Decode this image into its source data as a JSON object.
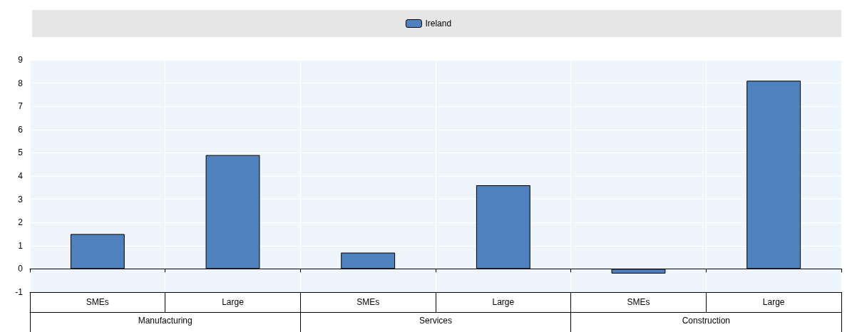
{
  "chart_data": {
    "type": "bar",
    "categories": [
      "SMEs",
      "Large",
      "SMEs",
      "Large",
      "SMEs",
      "Large"
    ],
    "annotations": [
      "Manufacturing",
      "Services",
      "Construction"
    ],
    "series": [
      {
        "name": "Ireland",
        "color": "#4e81bd",
        "values": [
          1.5,
          4.9,
          0.7,
          3.6,
          -0.2,
          8.1
        ]
      }
    ],
    "ylim": [
      -1,
      9
    ],
    "yticks": [
      -1,
      0,
      1,
      2,
      3,
      4,
      5,
      6,
      7,
      8,
      9
    ],
    "grid": true,
    "legend": "top"
  }
}
